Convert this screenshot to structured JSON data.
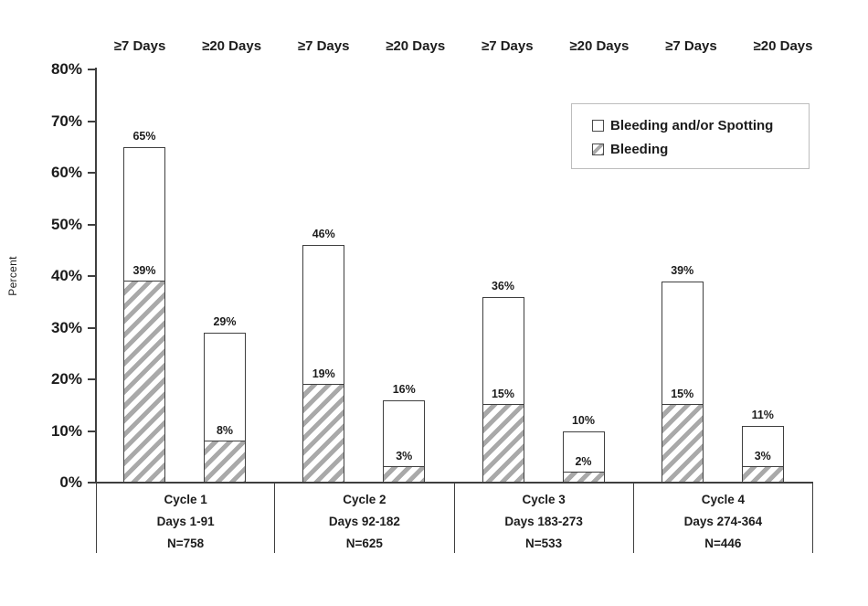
{
  "chart_data": {
    "type": "bar",
    "stacked": true,
    "title": "",
    "xlabel": "",
    "ylabel": "Percent",
    "ylim": [
      0,
      80
    ],
    "ytick_labels": [
      "0%",
      "10%",
      "20%",
      "30%",
      "40%",
      "50%",
      "60%",
      "70%",
      "80%"
    ],
    "grid": false,
    "legend": {
      "position": "top-right",
      "entries": [
        {
          "label": "Bleeding and/or Spotting",
          "swatch": "open"
        },
        {
          "label": "Bleeding",
          "swatch": "hatched"
        }
      ]
    },
    "groups": [
      {
        "cycle": "Cycle 1",
        "days": "Days 1-91",
        "n": "N=758",
        "bars": [
          {
            "duration": "≥7 Days",
            "total_pct": 65,
            "bleeding_pct": 39,
            "total_label": "65%",
            "bleeding_label": "39%"
          },
          {
            "duration": "≥20 Days",
            "total_pct": 29,
            "bleeding_pct": 8,
            "total_label": "29%",
            "bleeding_label": "8%"
          }
        ]
      },
      {
        "cycle": "Cycle 2",
        "days": "Days 92-182",
        "n": "N=625",
        "bars": [
          {
            "duration": "≥7 Days",
            "total_pct": 46,
            "bleeding_pct": 19,
            "total_label": "46%",
            "bleeding_label": "19%"
          },
          {
            "duration": "≥20 Days",
            "total_pct": 16,
            "bleeding_pct": 3,
            "total_label": "16%",
            "bleeding_label": "3%"
          }
        ]
      },
      {
        "cycle": "Cycle 3",
        "days": "Days 183-273",
        "n": "N=533",
        "bars": [
          {
            "duration": "≥7 Days",
            "total_pct": 36,
            "bleeding_pct": 15,
            "total_label": "36%",
            "bleeding_label": "15%"
          },
          {
            "duration": "≥20 Days",
            "total_pct": 10,
            "bleeding_pct": 2,
            "total_label": "10%",
            "bleeding_label": "2%"
          }
        ]
      },
      {
        "cycle": "Cycle 4",
        "days": "Days 274-364",
        "n": "N=446",
        "bars": [
          {
            "duration": "≥7 Days",
            "total_pct": 39,
            "bleeding_pct": 15,
            "total_label": "39%",
            "bleeding_label": "15%"
          },
          {
            "duration": "≥20 Days",
            "total_pct": 11,
            "bleeding_pct": 3,
            "total_label": "11%",
            "bleeding_label": "3%"
          }
        ]
      }
    ]
  },
  "colors": {
    "background": "#ffffff",
    "text": "#1c1c1c",
    "axis": "#3f3f3f",
    "bar_border": "#3f3f3f",
    "bar_fill": "#ffffff",
    "hatch_stripe": "#a9a9a9",
    "legend_border": "#bdbdbd"
  }
}
